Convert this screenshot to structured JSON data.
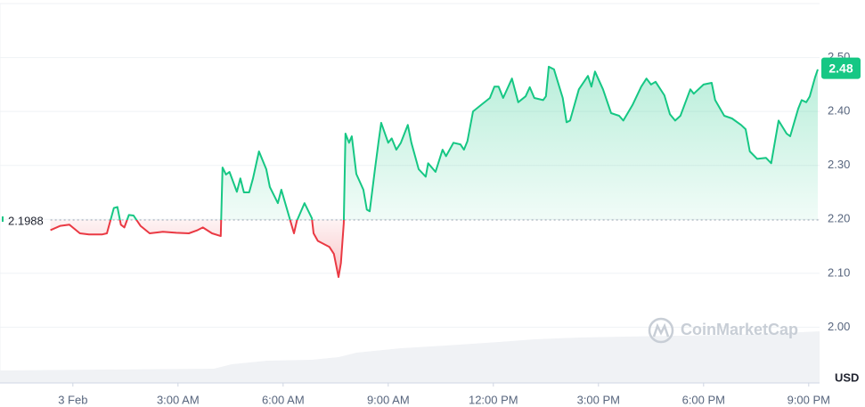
{
  "chart_data": {
    "type": "line",
    "currency_label": "USD",
    "watermark": "CoinMarketCap",
    "baseline": 2.1988,
    "current_price": 2.48,
    "grid": true,
    "xlim": [
      -2.08,
      21.31
    ],
    "xticks": [
      {
        "value": 0,
        "label": "3 Feb"
      },
      {
        "value": 3,
        "label": "3:00 AM"
      },
      {
        "value": 6,
        "label": "6:00 AM"
      },
      {
        "value": 9,
        "label": "9:00 AM"
      },
      {
        "value": 12,
        "label": "12:00 PM"
      },
      {
        "value": 15,
        "label": "3:00 PM"
      },
      {
        "value": 18,
        "label": "6:00 PM"
      },
      {
        "value": 21,
        "label": "9:00 PM"
      }
    ],
    "ylim": [
      1.9,
      2.6
    ],
    "yticks": [
      {
        "value": 2.0,
        "label": "2.00"
      },
      {
        "value": 2.1,
        "label": "2.10"
      },
      {
        "value": 2.2,
        "label": "2.20"
      },
      {
        "value": 2.3,
        "label": "2.30"
      },
      {
        "value": 2.4,
        "label": "2.40"
      },
      {
        "value": 2.5,
        "label": "2.50"
      }
    ],
    "colors": {
      "up": "#16c784",
      "down": "#ea3943"
    },
    "x": [
      -0.64,
      -0.36,
      -0.1,
      0.2,
      0.46,
      0.84,
      0.97,
      1.17,
      1.27,
      1.37,
      1.47,
      1.6,
      1.73,
      1.93,
      2.19,
      2.57,
      2.95,
      3.31,
      3.56,
      3.71,
      3.97,
      4.22,
      4.27,
      4.37,
      4.47,
      4.68,
      4.78,
      4.88,
      5.03,
      5.14,
      5.31,
      5.52,
      5.62,
      5.85,
      5.95,
      6.15,
      6.31,
      6.39,
      6.61,
      6.82,
      6.87,
      6.99,
      7.32,
      7.45,
      7.58,
      7.65,
      7.73,
      7.78,
      7.88,
      7.96,
      8.09,
      8.29,
      8.39,
      8.47,
      8.62,
      8.72,
      8.8,
      9.0,
      9.1,
      9.23,
      9.36,
      9.56,
      9.66,
      9.87,
      10.07,
      10.14,
      10.35,
      10.55,
      10.65,
      10.86,
      11.06,
      11.16,
      11.26,
      11.42,
      11.65,
      11.9,
      12.03,
      12.15,
      12.28,
      12.53,
      12.71,
      12.92,
      13.04,
      13.17,
      13.42,
      13.5,
      13.58,
      13.73,
      13.98,
      14.09,
      14.19,
      14.44,
      14.7,
      14.8,
      14.9,
      15.13,
      15.36,
      15.59,
      15.71,
      15.97,
      16.22,
      16.37,
      16.5,
      16.63,
      16.88,
      17.04,
      17.19,
      17.34,
      17.62,
      17.72,
      18.0,
      18.23,
      18.33,
      18.59,
      18.81,
      19.07,
      19.2,
      19.32,
      19.53,
      19.78,
      19.93,
      20.14,
      20.37,
      20.47,
      20.7,
      20.8,
      20.93,
      21.03,
      21.18,
      21.26
    ],
    "values": [
      2.18,
      2.188,
      2.19,
      2.174,
      2.172,
      2.172,
      2.174,
      2.221,
      2.223,
      2.19,
      2.185,
      2.208,
      2.207,
      2.188,
      2.174,
      2.177,
      2.175,
      2.174,
      2.18,
      2.185,
      2.174,
      2.169,
      2.296,
      2.283,
      2.288,
      2.251,
      2.276,
      2.25,
      2.25,
      2.276,
      2.326,
      2.293,
      2.26,
      2.23,
      2.255,
      2.21,
      2.174,
      2.197,
      2.23,
      2.202,
      2.174,
      2.16,
      2.149,
      2.136,
      2.093,
      2.119,
      2.193,
      2.359,
      2.342,
      2.354,
      2.284,
      2.255,
      2.218,
      2.215,
      2.293,
      2.342,
      2.379,
      2.342,
      2.35,
      2.329,
      2.342,
      2.375,
      2.342,
      2.293,
      2.279,
      2.304,
      2.288,
      2.329,
      2.317,
      2.342,
      2.339,
      2.329,
      2.345,
      2.4,
      2.412,
      2.425,
      2.446,
      2.446,
      2.425,
      2.461,
      2.417,
      2.428,
      2.445,
      2.425,
      2.421,
      2.428,
      2.483,
      2.478,
      2.425,
      2.38,
      2.383,
      2.441,
      2.466,
      2.446,
      2.474,
      2.441,
      2.397,
      2.392,
      2.383,
      2.412,
      2.446,
      2.461,
      2.45,
      2.455,
      2.43,
      2.395,
      2.383,
      2.392,
      2.441,
      2.433,
      2.45,
      2.453,
      2.421,
      2.392,
      2.387,
      2.375,
      2.367,
      2.326,
      2.312,
      2.314,
      2.304,
      2.383,
      2.359,
      2.354,
      2.405,
      2.421,
      2.417,
      2.428,
      2.463,
      2.478
    ]
  }
}
